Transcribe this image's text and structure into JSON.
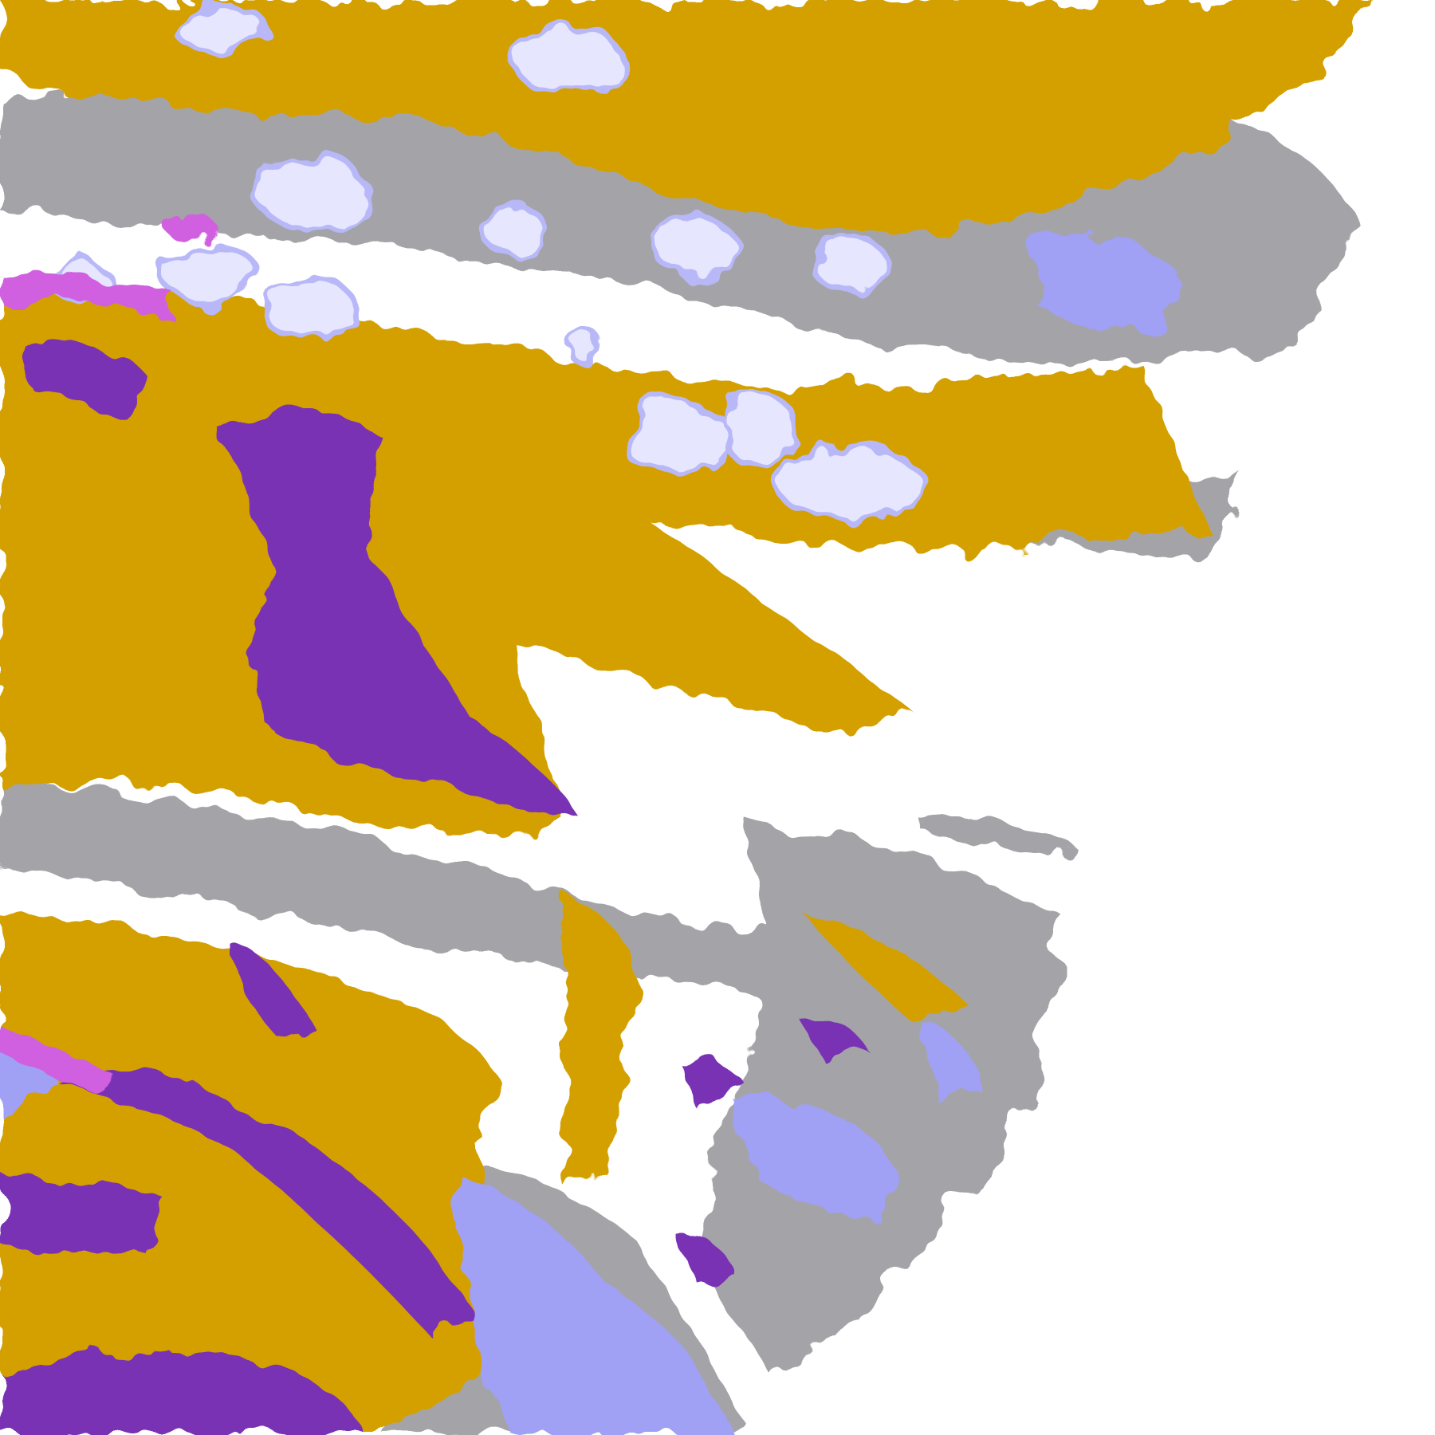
{
  "image": {
    "kind": "false-color satellite cloud/surface classification",
    "colors": {
      "background": "#ffffff",
      "gold": "#d4a000",
      "purple": "#7a32b4",
      "gray": "#a4a4a8",
      "lavender": "#a0a0f4",
      "pale_lavender": "#e6e6ff",
      "magenta": "#d060e0"
    }
  }
}
